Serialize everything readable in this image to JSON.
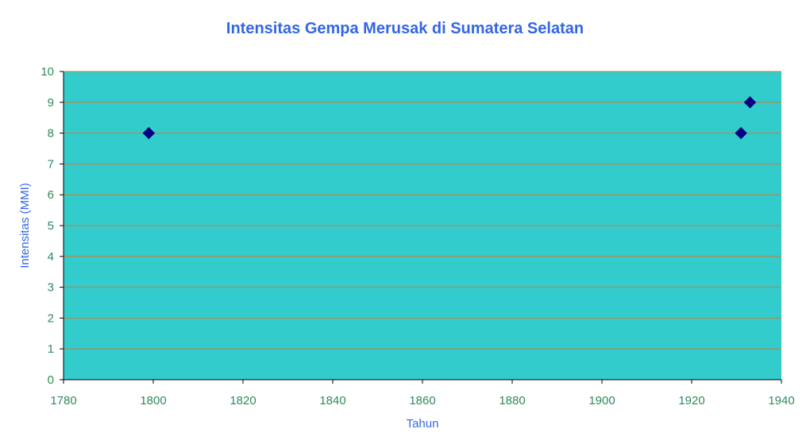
{
  "chart_data": {
    "type": "scatter",
    "title": "Intensitas Gempa Merusak di Sumatera Selatan",
    "xlabel": "Tahun",
    "ylabel": "Intensitas (MMI)",
    "xlim": [
      1780,
      1940
    ],
    "ylim": [
      0,
      10
    ],
    "x_ticks": [
      "1780",
      "1800",
      "1820",
      "1840",
      "1860",
      "1880",
      "1900",
      "1920",
      "1940"
    ],
    "y_ticks": [
      "0",
      "1",
      "2",
      "3",
      "4",
      "5",
      "6",
      "7",
      "8",
      "9",
      "10"
    ],
    "grid": true,
    "legend": "none",
    "series": [
      {
        "points": [
          {
            "x": 1799,
            "y": 8
          },
          {
            "x": 1931,
            "y": 8
          },
          {
            "x": 1933,
            "y": 9
          }
        ]
      }
    ],
    "colors": {
      "plot_background": "#33CCCC",
      "gridline": "#CC7A33",
      "marker": "#000080",
      "title_text": "#3366E6",
      "tick_text": "#2E8B57"
    }
  }
}
